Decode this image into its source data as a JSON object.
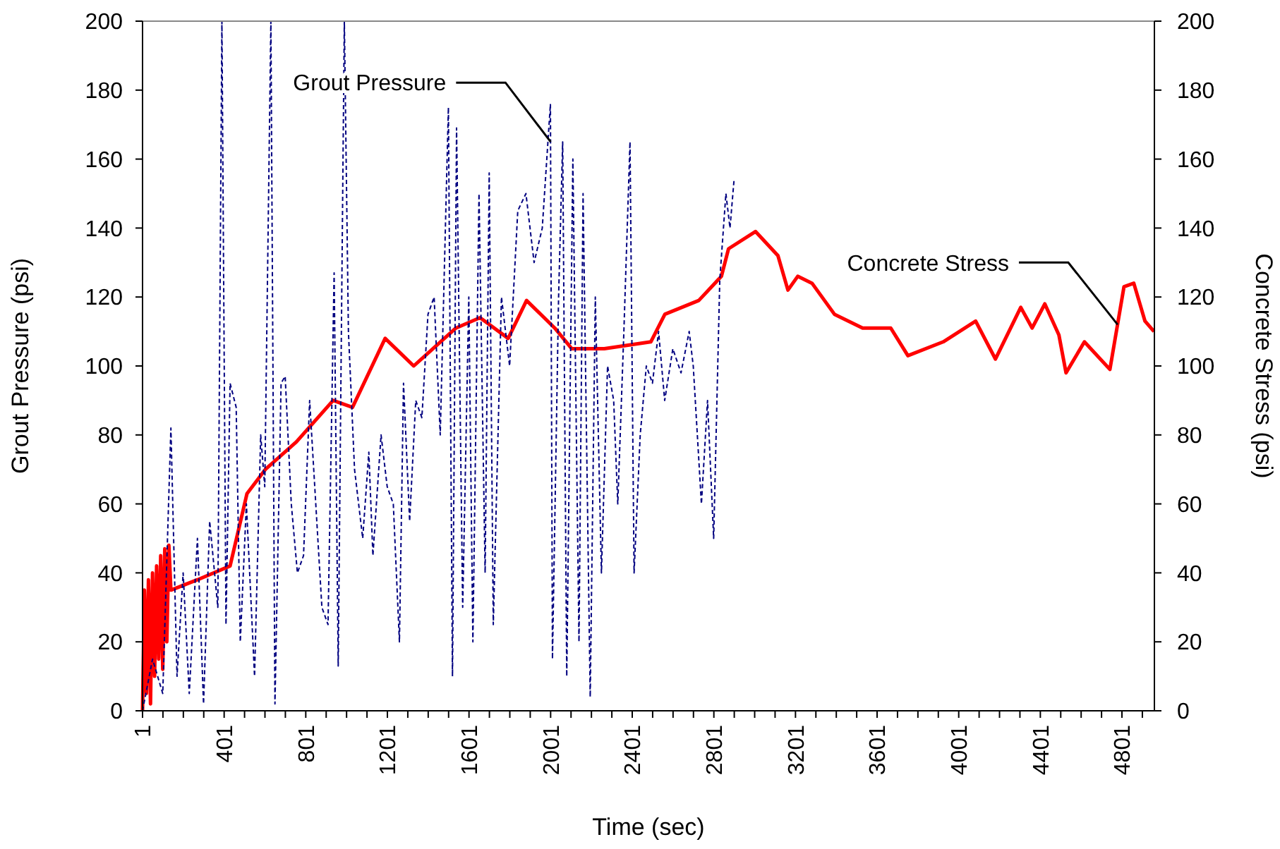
{
  "chart_data": {
    "type": "line",
    "xlabel": "Time (sec)",
    "ylabel": "Grout Pressure (psi)",
    "y2label": "Concrete Stress (psi)",
    "xlim": [
      1,
      4960
    ],
    "ylim": [
      0,
      200
    ],
    "y2lim": [
      0,
      200
    ],
    "yticks": [
      0,
      20,
      40,
      60,
      80,
      100,
      120,
      140,
      160,
      180,
      200
    ],
    "y2ticks": [
      0,
      20,
      40,
      60,
      80,
      100,
      120,
      140,
      160,
      180,
      200
    ],
    "xticks": [
      1,
      {
        "value": 101,
        "label": null
      },
      {
        "value": 201,
        "label": null
      },
      {
        "value": 301,
        "label": null
      },
      401,
      {
        "value": 501,
        "label": null
      },
      {
        "value": 601,
        "label": null
      },
      {
        "value": 701,
        "label": null
      },
      801,
      {
        "value": 901,
        "label": null
      },
      {
        "value": 1001,
        "label": null
      },
      {
        "value": 1101,
        "label": null
      },
      1201,
      {
        "value": 1301,
        "label": null
      },
      {
        "value": 1401,
        "label": null
      },
      {
        "value": 1501,
        "label": null
      },
      1601,
      {
        "value": 1701,
        "label": null
      },
      {
        "value": 1801,
        "label": null
      },
      {
        "value": 1901,
        "label": null
      },
      2001,
      {
        "value": 2101,
        "label": null
      },
      {
        "value": 2201,
        "label": null
      },
      {
        "value": 2301,
        "label": null
      },
      2401,
      {
        "value": 2501,
        "label": null
      },
      {
        "value": 2601,
        "label": null
      },
      {
        "value": 2701,
        "label": null
      },
      2801,
      {
        "value": 2901,
        "label": null
      },
      {
        "value": 3001,
        "label": null
      },
      {
        "value": 3101,
        "label": null
      },
      3201,
      {
        "value": 3301,
        "label": null
      },
      {
        "value": 3401,
        "label": null
      },
      {
        "value": 3501,
        "label": null
      },
      3601,
      {
        "value": 3701,
        "label": null
      },
      {
        "value": 3801,
        "label": null
      },
      {
        "value": 3901,
        "label": null
      },
      4001,
      {
        "value": 4101,
        "label": null
      },
      {
        "value": 4201,
        "label": null
      },
      {
        "value": 4301,
        "label": null
      },
      4401,
      {
        "value": 4501,
        "label": null
      },
      {
        "value": 4601,
        "label": null
      },
      {
        "value": 4701,
        "label": null
      },
      4801,
      {
        "value": 4901,
        "label": null
      }
    ],
    "grid": false,
    "marker": "none",
    "series": [
      {
        "color": "#000080",
        "line_style": "dashed",
        "axis": "y",
        "x": [
          1,
          50,
          100,
          140,
          170,
          200,
          230,
          270,
          300,
          330,
          370,
          390,
          410,
          430,
          460,
          480,
          510,
          550,
          580,
          600,
          630,
          650,
          680,
          700,
          730,
          760,
          790,
          820,
          850,
          880,
          910,
          940,
          960,
          990,
          1010,
          1040,
          1080,
          1110,
          1130,
          1170,
          1200,
          1230,
          1260,
          1280,
          1310,
          1340,
          1370,
          1400,
          1430,
          1460,
          1500,
          1520,
          1540,
          1570,
          1600,
          1620,
          1650,
          1680,
          1700,
          1720,
          1760,
          1800,
          1840,
          1880,
          1920,
          1960,
          2000,
          2010,
          2040,
          2060,
          2080,
          2110,
          2140,
          2160,
          2195,
          2220,
          2250,
          2280,
          2310,
          2330,
          2360,
          2390,
          2410,
          2440,
          2470,
          2500,
          2530,
          2560,
          2600,
          2640,
          2680,
          2700,
          2740,
          2770,
          2800,
          2830,
          2860,
          2880,
          2900
        ],
        "values": [
          0,
          15,
          5,
          82,
          10,
          40,
          5,
          50,
          2,
          55,
          30,
          200,
          25,
          95,
          88,
          20,
          60,
          10,
          80,
          65,
          200,
          2,
          95,
          97,
          60,
          40,
          45,
          90,
          60,
          30,
          25,
          127,
          13,
          200,
          110,
          70,
          50,
          75,
          45,
          80,
          65,
          60,
          20,
          95,
          55,
          90,
          85,
          115,
          120,
          80,
          175,
          10,
          169,
          30,
          120,
          20,
          150,
          40,
          156,
          25,
          120,
          100,
          145,
          150,
          130,
          140,
          176,
          15,
          120,
          165,
          10,
          160,
          20,
          150,
          4,
          120,
          40,
          100,
          90,
          60,
          110,
          165,
          40,
          80,
          100,
          95,
          110,
          90,
          105,
          98,
          110,
          100,
          60,
          90,
          50,
          125,
          150,
          140,
          154
        ]
      },
      {
        "color": "#ff0000",
        "line_style": "solid",
        "axis": "y2",
        "x": [
          1,
          10,
          20,
          30,
          40,
          50,
          60,
          70,
          80,
          90,
          100,
          110,
          120,
          130,
          140,
          270,
          430,
          513,
          603,
          755,
          935,
          1030,
          1190,
          1330,
          1537,
          1655,
          1793,
          1883,
          2021,
          2105,
          2264,
          2492,
          2561,
          2727,
          2838,
          2873,
          3005,
          3115,
          3164,
          3212,
          3282,
          3392,
          3530,
          3668,
          3752,
          3925,
          4084,
          4181,
          4305,
          4361,
          4423,
          4492,
          4527,
          4617,
          4742,
          4811,
          4859,
          4914,
          4958
        ],
        "values": [
          0,
          35,
          5,
          38,
          2,
          40,
          10,
          42,
          15,
          45,
          12,
          47,
          20,
          48,
          35,
          38,
          42,
          63,
          70,
          78,
          90,
          88,
          108,
          100,
          111,
          114,
          108,
          119,
          111,
          105,
          105,
          107,
          115,
          119,
          126,
          134,
          139,
          132,
          122,
          126,
          124,
          115,
          111,
          111,
          103,
          107,
          113,
          102,
          117,
          111,
          118,
          109,
          98,
          107,
          99,
          123,
          124,
          113,
          110
        ]
      }
    ],
    "annotations": [
      {
        "text": "Grout Pressure",
        "x": 2001,
        "y": 165
      },
      {
        "text": "Concrete Stress",
        "x": 4780,
        "y": 112
      }
    ]
  }
}
